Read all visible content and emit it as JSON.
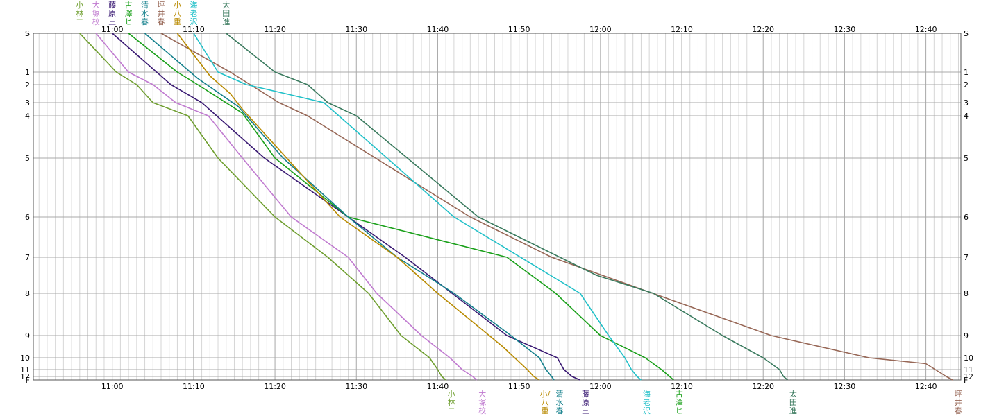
{
  "chart_data": {
    "type": "line",
    "x_tick_labels": [
      "11:00",
      "11:10",
      "11:20",
      "11:30",
      "11:40",
      "11:50",
      "12:00",
      "12:10",
      "12:20",
      "12:30",
      "12:40"
    ],
    "x_tick_minutes": [
      0,
      10,
      20,
      30,
      40,
      50,
      60,
      70,
      80,
      90,
      100
    ],
    "x_range_minutes": [
      -9.7,
      104.3
    ],
    "y_ticks": [
      "S",
      "1",
      "2",
      "3",
      "4",
      "5",
      "6",
      "7",
      "8",
      "9",
      "10",
      "11",
      "12",
      "F"
    ],
    "grid": true,
    "series": [
      {
        "name": "小林二",
        "color": "#6e9e2e",
        "top_label": [
          "小",
          "林",
          "二"
        ],
        "bottom_label": [
          "小",
          "林",
          "二"
        ],
        "points": [
          [
            -4,
            0
          ],
          [
            0.5,
            1
          ],
          [
            3,
            2
          ],
          [
            5,
            3
          ],
          [
            9.3,
            4
          ],
          [
            13,
            5
          ],
          [
            20,
            6
          ],
          [
            26.5,
            7
          ],
          [
            31.5,
            8
          ],
          [
            35.5,
            9
          ],
          [
            39,
            10
          ],
          [
            40,
            11
          ],
          [
            40.5,
            12
          ],
          [
            41,
            13
          ]
        ]
      },
      {
        "name": "大塚校",
        "color": "#c07ad0",
        "top_label": [
          "大",
          "塚",
          "校"
        ],
        "bottom_label": [
          "大",
          "塚",
          "校"
        ],
        "points": [
          [
            -2,
            0
          ],
          [
            2,
            1
          ],
          [
            5,
            2
          ],
          [
            7.8,
            3
          ],
          [
            11.8,
            4
          ],
          [
            16,
            5
          ],
          [
            22,
            6
          ],
          [
            29,
            7
          ],
          [
            32.5,
            8
          ],
          [
            38,
            9
          ],
          [
            41.5,
            10
          ],
          [
            43,
            11
          ],
          [
            44.3,
            12
          ],
          [
            44.8,
            13
          ]
        ]
      },
      {
        "name": "藤原三",
        "color": "#3a1a73",
        "top_label": [
          "藤",
          "原",
          "三"
        ],
        "bottom_label": [
          "藤",
          "原",
          "三"
        ],
        "points": [
          [
            0,
            0
          ],
          [
            7.2,
            2
          ],
          [
            11,
            3
          ],
          [
            18.7,
            5
          ],
          [
            29,
            6
          ],
          [
            36,
            7
          ],
          [
            48.5,
            9
          ],
          [
            54.7,
            10
          ],
          [
            55.5,
            11
          ],
          [
            56.5,
            12
          ],
          [
            57.5,
            13
          ]
        ]
      },
      {
        "name": "古澤ヒ",
        "color": "#1aa01a",
        "top_label": [
          "古",
          "澤",
          "ヒ"
        ],
        "bottom_label": [
          "古",
          "澤",
          "ヒ"
        ],
        "points": [
          [
            2,
            0
          ],
          [
            8,
            1
          ],
          [
            10.5,
            2
          ],
          [
            16,
            3.8
          ],
          [
            20,
            5
          ],
          [
            29,
            6
          ],
          [
            48.5,
            7
          ],
          [
            54.5,
            8
          ],
          [
            60,
            9
          ],
          [
            65.5,
            10
          ],
          [
            67.5,
            11
          ],
          [
            68.5,
            12
          ],
          [
            69,
            13
          ]
        ]
      },
      {
        "name": "清水春",
        "color": "#14808c",
        "top_label": [
          "清",
          "水",
          "春"
        ],
        "bottom_label": [
          "清",
          "水",
          "春"
        ],
        "points": [
          [
            4,
            0
          ],
          [
            10.5,
            1.5
          ],
          [
            15.5,
            3.3
          ],
          [
            21,
            5
          ],
          [
            29,
            6
          ],
          [
            35,
            7
          ],
          [
            42,
            8
          ],
          [
            49,
            9
          ],
          [
            52.5,
            10
          ],
          [
            53.3,
            11
          ],
          [
            54,
            12
          ],
          [
            54.3,
            13
          ]
        ]
      },
      {
        "name": "坪井春",
        "color": "#976756",
        "top_label": [
          "坪",
          "井",
          "春"
        ],
        "bottom_label": [
          "坪",
          "井",
          "春"
        ],
        "points": [
          [
            6,
            0
          ],
          [
            14.5,
            1
          ],
          [
            20.5,
            3
          ],
          [
            24,
            4
          ],
          [
            44,
            6
          ],
          [
            54,
            7
          ],
          [
            81,
            9
          ],
          [
            93,
            10
          ],
          [
            100,
            10.5
          ],
          [
            102.5,
            12
          ],
          [
            103.3,
            13
          ]
        ]
      },
      {
        "name": "小八重",
        "color": "#b88a00",
        "top_label": [
          "小",
          "八",
          "重"
        ],
        "bottom_label": [
          "小/",
          "八",
          "重"
        ],
        "points": [
          [
            8,
            0
          ],
          [
            12,
            1.3
          ],
          [
            14.5,
            2.5
          ],
          [
            16,
            3.5
          ],
          [
            28,
            6
          ],
          [
            35,
            7
          ],
          [
            40,
            8
          ],
          [
            48,
            9.5
          ],
          [
            51,
            11
          ],
          [
            51.8,
            12
          ],
          [
            52.5,
            13
          ]
        ]
      },
      {
        "name": "海老沢",
        "color": "#20c0c8",
        "top_label": [
          "海",
          "老",
          "沢"
        ],
        "bottom_label": [
          "海",
          "老",
          "沢"
        ],
        "points": [
          [
            10,
            0
          ],
          [
            13,
            1
          ],
          [
            16.5,
            2
          ],
          [
            26,
            3
          ],
          [
            32,
            4.7
          ],
          [
            42,
            6
          ],
          [
            57.5,
            8
          ],
          [
            61,
            9
          ],
          [
            63,
            10
          ],
          [
            63.8,
            11
          ],
          [
            64.5,
            12
          ],
          [
            65,
            13
          ]
        ]
      },
      {
        "name": "太田進",
        "color": "#3a7a5e",
        "top_label": [
          "太",
          "田",
          "進"
        ],
        "bottom_label": [
          "太",
          "田",
          "進"
        ],
        "points": [
          [
            14,
            0
          ],
          [
            20,
            1
          ],
          [
            24,
            2
          ],
          [
            26.5,
            3
          ],
          [
            30,
            4
          ],
          [
            45,
            6
          ],
          [
            59.5,
            7.5
          ],
          [
            66.5,
            8
          ],
          [
            75,
            9
          ],
          [
            80,
            10
          ],
          [
            82,
            11
          ],
          [
            82.5,
            12
          ],
          [
            83,
            13
          ]
        ]
      }
    ]
  }
}
